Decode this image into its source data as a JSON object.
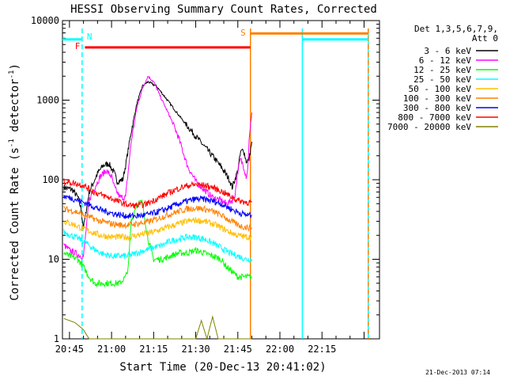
{
  "chart_data": {
    "type": "line",
    "title": "HESSI Observing Summary Count Rates, Corrected",
    "xlabel": "Start Time (20-Dec-13 20:41:02)",
    "ylabel_main": "Corrected Count Rate (s",
    "ylabel_sup1": "-1",
    "ylabel_mid": " detector",
    "ylabel_sup2": "-1",
    "ylabel_end": ")",
    "yscale": "log",
    "ylim": [
      1,
      10000
    ],
    "xlim_minutes": [
      -17.5,
      95.5
    ],
    "x_ticks": [
      {
        "label": "20:45",
        "min": -15
      },
      {
        "label": "21:00",
        "min": 0
      },
      {
        "label": "21:15",
        "min": 15
      },
      {
        "label": "21:30",
        "min": 30
      },
      {
        "label": "21:45",
        "min": 45
      },
      {
        "label": "22:00",
        "min": 60
      },
      {
        "label": "22:15",
        "min": 75
      }
    ],
    "y_ticks": [
      {
        "label": "1",
        "value": 1
      },
      {
        "label": "10",
        "value": 10
      },
      {
        "label": "100",
        "value": 100
      },
      {
        "label": "1000",
        "value": 1000
      },
      {
        "label": "10000",
        "value": 10000
      }
    ],
    "legend_title": [
      "Det 1,3,5,6,7,9,",
      "Att 0"
    ],
    "legend_placement": "right",
    "series": [
      {
        "name": "3 - 6 keV",
        "color": "#000000",
        "points": [
          [
            -17,
            80
          ],
          [
            -14,
            75
          ],
          [
            -12,
            60
          ],
          [
            -11,
            45
          ],
          [
            -10,
            25
          ],
          [
            -8,
            70
          ],
          [
            -5,
            120
          ],
          [
            -3,
            150
          ],
          [
            -1,
            160
          ],
          [
            1,
            120
          ],
          [
            2,
            95
          ],
          [
            4,
            100
          ],
          [
            5,
            150
          ],
          [
            7,
            400
          ],
          [
            9,
            900
          ],
          [
            11,
            1500
          ],
          [
            13,
            1700
          ],
          [
            16,
            1500
          ],
          [
            19,
            1100
          ],
          [
            22,
            800
          ],
          [
            25,
            580
          ],
          [
            28,
            430
          ],
          [
            31,
            320
          ],
          [
            34,
            240
          ],
          [
            37,
            180
          ],
          [
            40,
            130
          ],
          [
            42,
            100
          ],
          [
            43,
            80
          ],
          [
            45,
            130
          ],
          [
            46,
            220
          ],
          [
            47,
            240
          ],
          [
            48,
            170
          ],
          [
            49,
            180
          ],
          [
            50,
            300
          ]
        ]
      },
      {
        "name": "6 - 12 keV",
        "color": "#ff00ff",
        "points": [
          [
            -17,
            15
          ],
          [
            -15,
            13
          ],
          [
            -13,
            12
          ],
          [
            -11,
            11
          ],
          [
            -10,
            11
          ],
          [
            -8,
            55
          ],
          [
            -6,
            80
          ],
          [
            -4,
            110
          ],
          [
            -2,
            130
          ],
          [
            0,
            110
          ],
          [
            1,
            80
          ],
          [
            3,
            60
          ],
          [
            5,
            60
          ],
          [
            7,
            300
          ],
          [
            9,
            800
          ],
          [
            11,
            1400
          ],
          [
            13,
            2000
          ],
          [
            15,
            1700
          ],
          [
            18,
            1000
          ],
          [
            21,
            600
          ],
          [
            24,
            330
          ],
          [
            27,
            150
          ],
          [
            30,
            95
          ],
          [
            33,
            75
          ],
          [
            36,
            60
          ],
          [
            39,
            55
          ],
          [
            41,
            50
          ],
          [
            43,
            55
          ],
          [
            44,
            65
          ],
          [
            45,
            130
          ],
          [
            46,
            180
          ],
          [
            47,
            150
          ],
          [
            48,
            110
          ],
          [
            48.5,
            130
          ],
          [
            49,
            300
          ],
          [
            50,
            700
          ]
        ]
      },
      {
        "name": "12 - 25 keV",
        "color": "#00ff00",
        "points": [
          [
            -17,
            12
          ],
          [
            -15,
            11
          ],
          [
            -12,
            10
          ],
          [
            -10,
            8
          ],
          [
            -8,
            6
          ],
          [
            -6,
            5
          ],
          [
            -3,
            5
          ],
          [
            -1,
            5
          ],
          [
            1,
            5
          ],
          [
            3,
            5
          ],
          [
            5,
            6
          ],
          [
            6,
            8
          ],
          [
            7,
            30
          ],
          [
            9,
            50
          ],
          [
            11,
            52
          ],
          [
            12,
            30
          ],
          [
            13,
            18
          ],
          [
            15,
            10
          ],
          [
            18,
            10
          ],
          [
            21,
            11
          ],
          [
            24,
            12
          ],
          [
            27,
            12
          ],
          [
            30,
            13
          ],
          [
            33,
            12
          ],
          [
            36,
            11
          ],
          [
            39,
            10
          ],
          [
            41,
            8
          ],
          [
            43,
            7
          ],
          [
            45,
            6
          ],
          [
            46,
            6
          ],
          [
            47,
            6
          ],
          [
            48,
            6
          ],
          [
            50,
            6
          ]
        ]
      },
      {
        "name": "25 - 50 keV",
        "color": "#00ffff",
        "points": [
          [
            -17,
            22
          ],
          [
            -13,
            19
          ],
          [
            -10,
            17
          ],
          [
            -7,
            14
          ],
          [
            -4,
            12
          ],
          [
            0,
            11
          ],
          [
            3,
            11
          ],
          [
            6,
            11
          ],
          [
            9,
            12
          ],
          [
            12,
            13
          ],
          [
            15,
            14
          ],
          [
            18,
            15
          ],
          [
            21,
            17
          ],
          [
            24,
            18
          ],
          [
            27,
            19
          ],
          [
            30,
            19
          ],
          [
            33,
            18
          ],
          [
            36,
            16
          ],
          [
            39,
            14
          ],
          [
            42,
            12
          ],
          [
            45,
            11
          ],
          [
            48,
            10
          ],
          [
            50,
            10
          ]
        ]
      },
      {
        "name": "50 - 100 keV",
        "color": "#ffbf00",
        "points": [
          [
            -17,
            30
          ],
          [
            -13,
            27
          ],
          [
            -10,
            24
          ],
          [
            -7,
            22
          ],
          [
            -4,
            20
          ],
          [
            0,
            19
          ],
          [
            3,
            19
          ],
          [
            6,
            19
          ],
          [
            9,
            20
          ],
          [
            12,
            21
          ],
          [
            15,
            22
          ],
          [
            18,
            24
          ],
          [
            21,
            26
          ],
          [
            24,
            28
          ],
          [
            27,
            30
          ],
          [
            30,
            31
          ],
          [
            33,
            30
          ],
          [
            36,
            28
          ],
          [
            39,
            25
          ],
          [
            42,
            22
          ],
          [
            45,
            20
          ],
          [
            48,
            19
          ],
          [
            50,
            19
          ]
        ]
      },
      {
        "name": "100 - 300 keV",
        "color": "#ff8000",
        "points": [
          [
            -17,
            43
          ],
          [
            -13,
            40
          ],
          [
            -10,
            36
          ],
          [
            -7,
            33
          ],
          [
            -4,
            30
          ],
          [
            0,
            28
          ],
          [
            3,
            27
          ],
          [
            6,
            27
          ],
          [
            9,
            28
          ],
          [
            12,
            29
          ],
          [
            15,
            31
          ],
          [
            18,
            34
          ],
          [
            21,
            37
          ],
          [
            24,
            40
          ],
          [
            27,
            43
          ],
          [
            30,
            44
          ],
          [
            33,
            43
          ],
          [
            36,
            40
          ],
          [
            39,
            36
          ],
          [
            42,
            31
          ],
          [
            45,
            27
          ],
          [
            48,
            25
          ],
          [
            50,
            25
          ]
        ]
      },
      {
        "name": "300 - 800 keV",
        "color": "#0000ff",
        "points": [
          [
            -17,
            62
          ],
          [
            -13,
            57
          ],
          [
            -10,
            52
          ],
          [
            -7,
            47
          ],
          [
            -4,
            42
          ],
          [
            0,
            38
          ],
          [
            3,
            36
          ],
          [
            6,
            35
          ],
          [
            9,
            35
          ],
          [
            12,
            36
          ],
          [
            15,
            38
          ],
          [
            18,
            41
          ],
          [
            21,
            45
          ],
          [
            24,
            50
          ],
          [
            27,
            54
          ],
          [
            30,
            57
          ],
          [
            33,
            57
          ],
          [
            36,
            54
          ],
          [
            39,
            50
          ],
          [
            42,
            44
          ],
          [
            45,
            39
          ],
          [
            48,
            36
          ],
          [
            50,
            36
          ]
        ]
      },
      {
        "name": "800 - 7000 keV",
        "color": "#ff0000",
        "points": [
          [
            -17,
            95
          ],
          [
            -13,
            90
          ],
          [
            -10,
            85
          ],
          [
            -7,
            72
          ],
          [
            -4,
            65
          ],
          [
            0,
            58
          ],
          [
            3,
            52
          ],
          [
            6,
            48
          ],
          [
            9,
            47
          ],
          [
            12,
            49
          ],
          [
            15,
            55
          ],
          [
            18,
            62
          ],
          [
            21,
            70
          ],
          [
            24,
            78
          ],
          [
            27,
            84
          ],
          [
            30,
            87
          ],
          [
            33,
            85
          ],
          [
            36,
            80
          ],
          [
            39,
            72
          ],
          [
            42,
            63
          ],
          [
            45,
            55
          ],
          [
            48,
            52
          ],
          [
            50,
            52
          ]
        ]
      },
      {
        "name": "7000 - 20000 keV",
        "color": "#808000",
        "points": [
          [
            -17,
            1.8
          ],
          [
            -13,
            1.6
          ],
          [
            -10,
            1.3
          ],
          [
            -8,
            1.0
          ],
          [
            0,
            1.0
          ],
          [
            20,
            1.0
          ],
          [
            30,
            1.0
          ],
          [
            32,
            1.7
          ],
          [
            34,
            1.0
          ],
          [
            36,
            1.9
          ],
          [
            38,
            1.0
          ],
          [
            50,
            1.0
          ]
        ]
      }
    ],
    "annotations": [
      {
        "label": "N",
        "color": "#00ffff",
        "min": -10.5
      },
      {
        "label": "F",
        "color": "#ff0000",
        "min": -9.5
      },
      {
        "label": "S",
        "color": "#ff8000",
        "min": 49.5
      }
    ],
    "status_bars": [
      {
        "color": "#00ffff",
        "from": -17.5,
        "to": -10.5,
        "value": 5800
      },
      {
        "color": "#ff0000",
        "from": -9.5,
        "to": 49.5,
        "value": 4600
      },
      {
        "color": "#ff8000",
        "from": 49.5,
        "to": 91.5,
        "value": 6900
      },
      {
        "color": "#00ffff",
        "from": 68,
        "to": 91.5,
        "value": 5800
      }
    ],
    "vlines": [
      {
        "color": "#00ffff",
        "min": -10.5,
        "style": "dashed"
      },
      {
        "color": "#ff8000",
        "min": 49.5,
        "style": "solid"
      },
      {
        "color": "#00ffff",
        "min": 68,
        "style": "solid"
      },
      {
        "color": "#00ffff",
        "min": 91.5,
        "style": "solid"
      },
      {
        "color": "#ff8000",
        "min": 91.5,
        "style": "dashed"
      }
    ]
  },
  "footer": {
    "timestamp": "21-Dec-2013 07:14"
  }
}
